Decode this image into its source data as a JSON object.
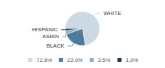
{
  "chart_data": {
    "type": "pie",
    "categories": [
      "WHITE",
      "BLACK",
      "ASIAN",
      "HISPANIC"
    ],
    "values": [
      72.6,
      22.0,
      3.5,
      1.9
    ],
    "value_labels": [
      "72.6%",
      "22.0%",
      "3.5%",
      "1.9%"
    ],
    "colors": [
      "#ccd9e5",
      "#4e7a9b",
      "#8aafc8",
      "#1b3a52"
    ],
    "legend": "bottom"
  }
}
